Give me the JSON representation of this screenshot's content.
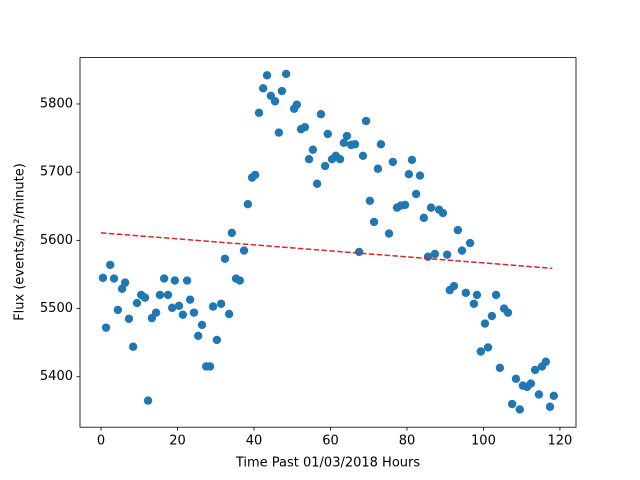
{
  "chart_data": {
    "type": "scatter",
    "xlabel": "Time Past 01/03/2018 Hours",
    "ylabel": "Flux (events/m²/minute)",
    "color": "#1f77b4",
    "x": [
      0.5,
      1.3,
      2.4,
      3.4,
      4.4,
      5.5,
      6.3,
      7.3,
      8.4,
      9.4,
      10.5,
      11.5,
      12.3,
      13.3,
      14.4,
      15.4,
      16.5,
      17.5,
      18.6,
      19.3,
      20.4,
      21.4,
      22.5,
      23.3,
      24.3,
      25.4,
      26.4,
      27.5,
      28.5,
      29.3,
      30.3,
      31.4,
      32.4,
      33.5,
      34.2,
      35.3,
      36.3,
      37.4,
      38.4,
      39.5,
      40.3,
      41.3,
      42.4,
      43.4,
      44.4,
      45.5,
      46.5,
      47.3,
      48.4,
      50.5,
      51.2,
      52.3,
      53.3,
      54.4,
      55.4,
      56.5,
      57.5,
      58.6,
      59.3,
      60.4,
      61.4,
      62.5,
      63.5,
      64.3,
      65.4,
      66.4,
      67.5,
      68.5,
      69.3,
      70.3,
      71.4,
      72.4,
      73.2,
      75.3,
      76.3,
      77.4,
      78.4,
      79.5,
      80.5,
      81.3,
      82.4,
      83.4,
      84.4,
      85.5,
      86.3,
      87.3,
      88.4,
      89.4,
      90.5,
      91.2,
      92.3,
      93.3,
      94.4,
      95.4,
      96.5,
      97.5,
      98.3,
      99.3,
      100.4,
      101.2,
      102.2,
      103.3,
      104.3,
      105.4,
      106.4,
      107.5,
      108.5,
      109.5,
      110.3,
      111.4,
      112.4,
      113.5,
      114.5,
      115.3,
      116.3,
      117.4,
      118.4
    ],
    "values": [
      5545,
      5472,
      5564,
      5544,
      5498,
      5529,
      5538,
      5485,
      5444,
      5508,
      5520,
      5516,
      5365,
      5486,
      5494,
      5520,
      5544,
      5520,
      5501,
      5541,
      5504,
      5491,
      5541,
      5513,
      5494,
      5460,
      5476,
      5415,
      5415,
      5503,
      5454,
      5507,
      5573,
      5492,
      5611,
      5544,
      5541,
      5585,
      5653,
      5692,
      5696,
      5787,
      5823,
      5842,
      5812,
      5804,
      5758,
      5819,
      5844,
      5793,
      5799,
      5763,
      5766,
      5719,
      5733,
      5683,
      5785,
      5709,
      5756,
      5719,
      5724,
      5719,
      5743,
      5753,
      5740,
      5741,
      5583,
      5724,
      5775,
      5658,
      5627,
      5705,
      5741,
      5610,
      5715,
      5648,
      5651,
      5652,
      5697,
      5718,
      5668,
      5695,
      5633,
      5576,
      5648,
      5580,
      5645,
      5640,
      5579,
      5527,
      5533,
      5615,
      5585,
      5523,
      5596,
      5507,
      5520,
      5437,
      5478,
      5443,
      5489,
      5520,
      5413,
      5500,
      5494,
      5360,
      5397,
      5352,
      5387,
      5385,
      5390,
      5410,
      5374,
      5415,
      5422,
      5356,
      5372
    ],
    "trend": {
      "x": [
        0,
        118
      ],
      "y": [
        5611,
        5559
      ],
      "color": "#d62728",
      "dashed": true
    },
    "xlim": [
      -5.5,
      124.2
    ],
    "xticks": [
      0,
      20,
      40,
      60,
      80,
      100,
      120
    ],
    "ylim": [
      5326,
      5868
    ],
    "yticks": [
      5400,
      5500,
      5600,
      5700,
      5800
    ],
    "grid": false
  }
}
